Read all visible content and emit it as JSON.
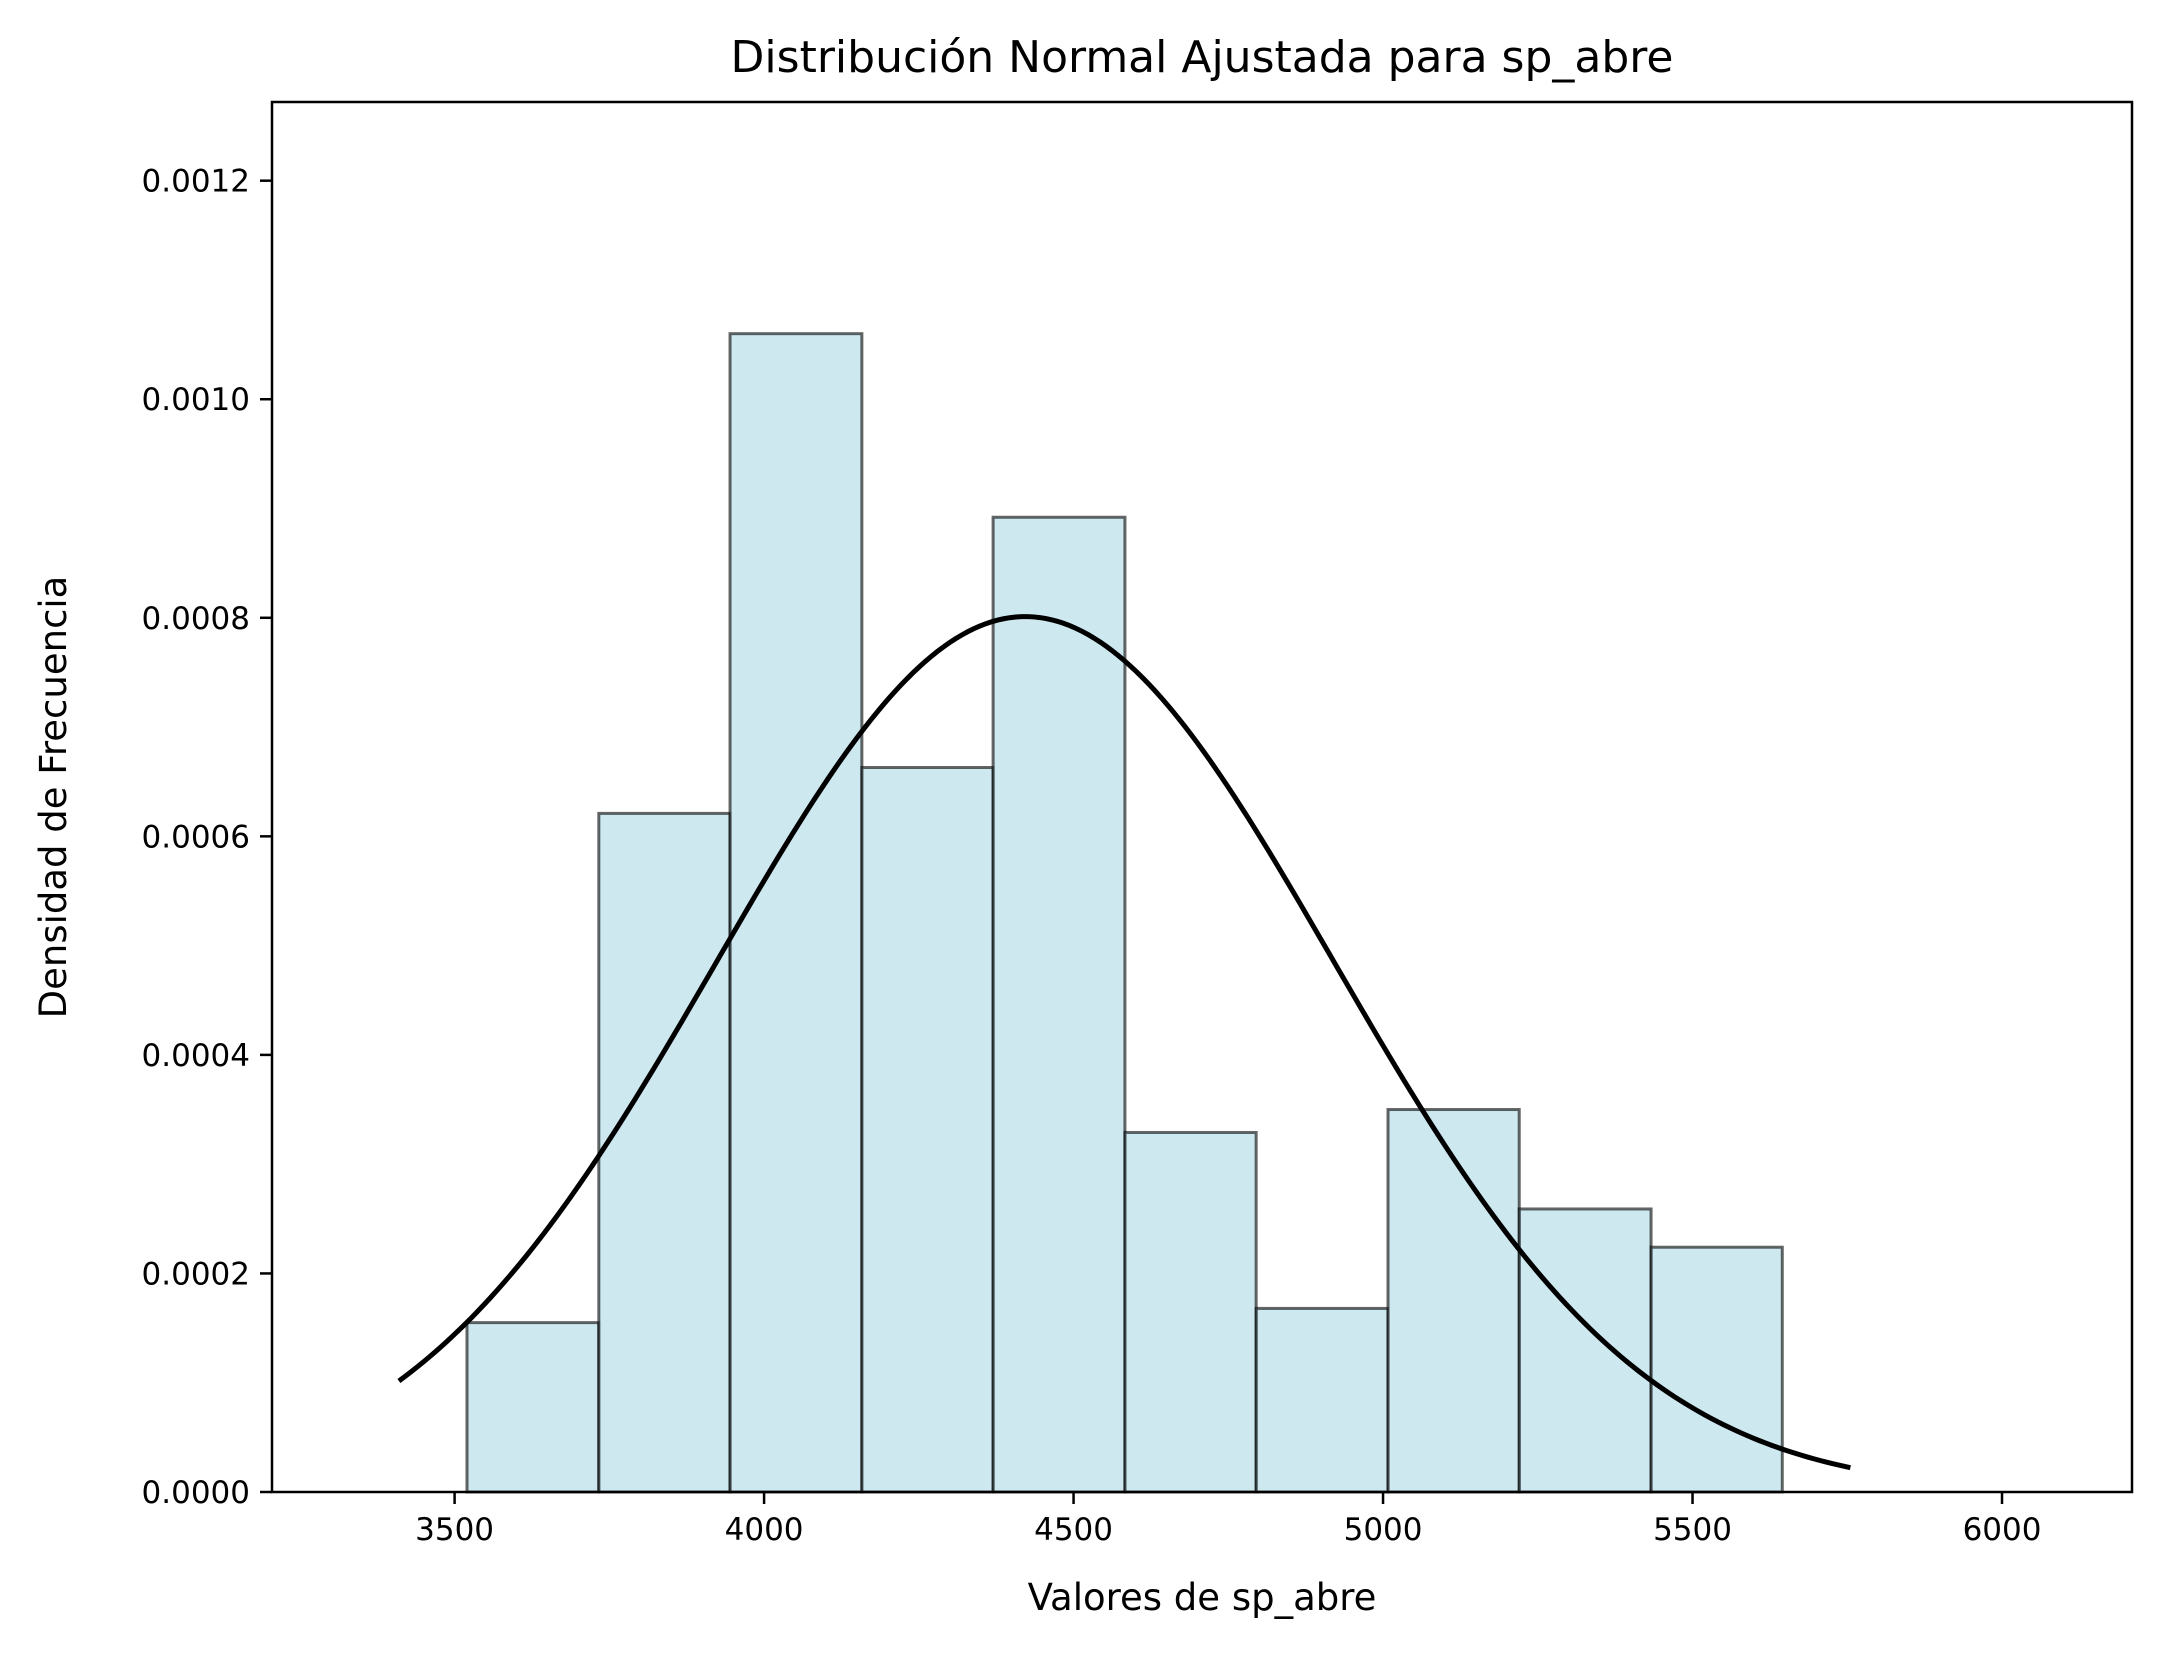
{
  "chart_data": {
    "type": "bar",
    "title": "Distribución Normal Ajustada para sp_abre",
    "xlabel": "Valores de sp_abre",
    "ylabel": "Densidad de Frecuencia",
    "xlim": [
      3205,
      6210
    ],
    "ylim": [
      0,
      0.001272
    ],
    "x_ticks": [
      3500,
      4000,
      4500,
      5000,
      5500,
      6000
    ],
    "x_tick_labels": [
      "3500",
      "4000",
      "4500",
      "5000",
      "5500",
      "6000"
    ],
    "y_ticks": [
      0,
      0.0002,
      0.0004,
      0.0006,
      0.0008,
      0.001,
      0.0012
    ],
    "y_tick_labels": [
      "0.0000",
      "0.0002",
      "0.0004",
      "0.0006",
      "0.0008",
      "0.0010",
      "0.0012"
    ],
    "grid": false,
    "histogram": {
      "bin_edges": [
        3520,
        3733,
        3945,
        4158,
        4370,
        4583,
        4795,
        5008,
        5220,
        5433,
        5645
      ],
      "densities": [
        0.000155,
        0.000621,
        0.00106,
        0.000663,
        0.000892,
        0.000329,
        0.000168,
        0.00035,
        0.000259,
        0.000224
      ],
      "fill_color": "#add8e6",
      "fill_opacity": 0.6,
      "edge_color": "#000000"
    },
    "fitted_curve": {
      "distribution": "normal",
      "mean": 4422,
      "std": 498,
      "x_range": [
        3410,
        5755
      ],
      "color": "#000000"
    }
  }
}
